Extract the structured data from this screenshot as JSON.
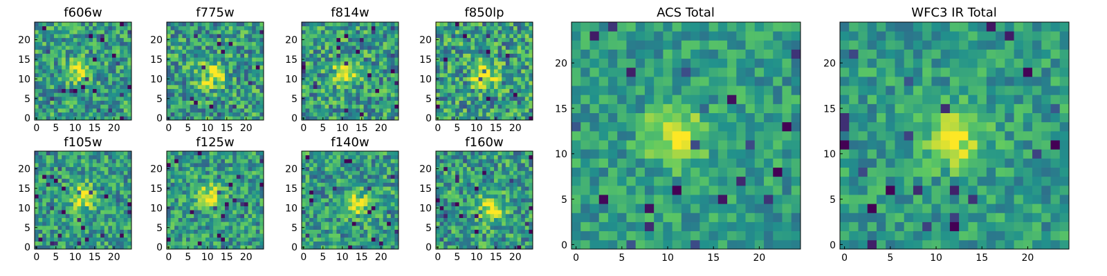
{
  "colormap": {
    "name": "viridis",
    "stops": [
      "#440154",
      "#3b528b",
      "#21918c",
      "#5ec962",
      "#fde725"
    ]
  },
  "chart_data": [
    {
      "type": "heatmap",
      "title": "f606w",
      "grid_size": 25,
      "xticks": [
        0,
        5,
        10,
        15,
        20
      ],
      "yticks": [
        0,
        5,
        10,
        15,
        20
      ],
      "peak": [
        11,
        12
      ],
      "noise": 0.26,
      "seed": 11
    },
    {
      "type": "heatmap",
      "title": "f775w",
      "grid_size": 25,
      "xticks": [
        0,
        5,
        10,
        15,
        20
      ],
      "yticks": [
        0,
        5,
        10,
        15,
        20
      ],
      "peak": [
        11,
        11
      ],
      "noise": 0.28,
      "seed": 23
    },
    {
      "type": "heatmap",
      "title": "f814w",
      "grid_size": 25,
      "xticks": [
        0,
        5,
        10,
        15,
        20
      ],
      "yticks": [
        0,
        5,
        10,
        15,
        20
      ],
      "peak": [
        11,
        12
      ],
      "noise": 0.28,
      "seed": 37
    },
    {
      "type": "heatmap",
      "title": "f850lp",
      "grid_size": 25,
      "xticks": [
        0,
        5,
        10,
        15,
        20
      ],
      "yticks": [
        0,
        5,
        10,
        15,
        20
      ],
      "peak": [
        12,
        11
      ],
      "noise": 0.3,
      "seed": 41
    },
    {
      "type": "heatmap",
      "title": "f105w",
      "grid_size": 25,
      "xticks": [
        0,
        5,
        10,
        15,
        20
      ],
      "yticks": [
        0,
        5,
        10,
        15,
        20
      ],
      "peak": [
        12,
        13
      ],
      "noise": 0.24,
      "seed": 53
    },
    {
      "type": "heatmap",
      "title": "f125w",
      "grid_size": 25,
      "xticks": [
        0,
        5,
        10,
        15,
        20
      ],
      "yticks": [
        0,
        5,
        10,
        15,
        20
      ],
      "peak": [
        11,
        13
      ],
      "noise": 0.24,
      "seed": 67
    },
    {
      "type": "heatmap",
      "title": "f140w",
      "grid_size": 25,
      "xticks": [
        0,
        5,
        10,
        15,
        20
      ],
      "yticks": [
        0,
        5,
        10,
        15,
        20
      ],
      "peak": [
        13,
        11
      ],
      "noise": 0.26,
      "seed": 71
    },
    {
      "type": "heatmap",
      "title": "f160w",
      "grid_size": 25,
      "xticks": [
        0,
        5,
        10,
        15,
        20
      ],
      "yticks": [
        0,
        5,
        10,
        15,
        20
      ],
      "peak": [
        14,
        10
      ],
      "noise": 0.26,
      "seed": 89
    },
    {
      "type": "heatmap",
      "title": "ACS Total",
      "grid_size": 25,
      "xticks": [
        0,
        5,
        10,
        15,
        20
      ],
      "yticks": [
        0,
        5,
        10,
        15,
        20
      ],
      "peak": [
        11,
        12
      ],
      "noise": 0.18,
      "seed": 97
    },
    {
      "type": "heatmap",
      "title": "WFC3 IR Total",
      "grid_size": 25,
      "xticks": [
        0,
        5,
        10,
        15,
        20
      ],
      "yticks": [
        0,
        5,
        10,
        15,
        20
      ],
      "peak": [
        12,
        12
      ],
      "noise": 0.18,
      "seed": 103
    }
  ]
}
